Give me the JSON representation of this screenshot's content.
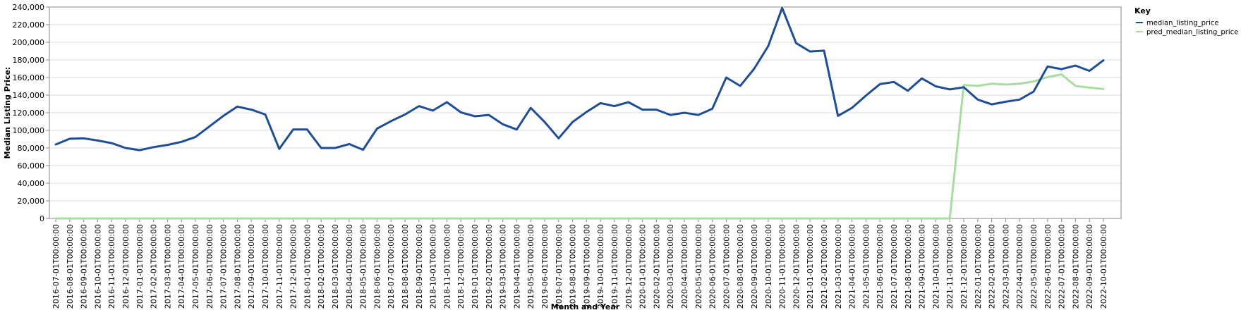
{
  "chart_data": {
    "type": "line",
    "xlabel": "Month and Year",
    "ylabel": "Median Listing Price:",
    "ylim": [
      0,
      240000
    ],
    "y_ticks": [
      "0",
      "20,000",
      "40,000",
      "60,000",
      "80,000",
      "100,000",
      "120,000",
      "140,000",
      "160,000",
      "180,000",
      "200,000",
      "220,000",
      "240,000"
    ],
    "grid": true,
    "legend": {
      "title": "Key",
      "position": "top-right"
    },
    "x": [
      "2016-07-01T00:00:00",
      "2016-08-01T00:00:00",
      "2016-09-01T00:00:00",
      "2016-10-01T00:00:00",
      "2016-11-01T00:00:00",
      "2016-12-01T00:00:00",
      "2017-01-01T00:00:00",
      "2017-02-01T00:00:00",
      "2017-03-01T00:00:00",
      "2017-04-01T00:00:00",
      "2017-05-01T00:00:00",
      "2017-06-01T00:00:00",
      "2017-07-01T00:00:00",
      "2017-08-01T00:00:00",
      "2017-09-01T00:00:00",
      "2017-10-01T00:00:00",
      "2017-11-01T00:00:00",
      "2017-12-01T00:00:00",
      "2018-01-01T00:00:00",
      "2018-02-01T00:00:00",
      "2018-03-01T00:00:00",
      "2018-04-01T00:00:00",
      "2018-05-01T00:00:00",
      "2018-06-01T00:00:00",
      "2018-07-01T00:00:00",
      "2018-08-01T00:00:00",
      "2018-09-01T00:00:00",
      "2018-10-01T00:00:00",
      "2018-11-01T00:00:00",
      "2018-12-01T00:00:00",
      "2019-01-01T00:00:00",
      "2019-02-01T00:00:00",
      "2019-03-01T00:00:00",
      "2019-04-01T00:00:00",
      "2019-05-01T00:00:00",
      "2019-06-01T00:00:00",
      "2019-07-01T00:00:00",
      "2019-08-01T00:00:00",
      "2019-09-01T00:00:00",
      "2019-10-01T00:00:00",
      "2019-11-01T00:00:00",
      "2019-12-01T00:00:00",
      "2020-01-01T00:00:00",
      "2020-02-01T00:00:00",
      "2020-03-01T00:00:00",
      "2020-04-01T00:00:00",
      "2020-05-01T00:00:00",
      "2020-06-01T00:00:00",
      "2020-07-01T00:00:00",
      "2020-08-01T00:00:00",
      "2020-09-01T00:00:00",
      "2020-10-01T00:00:00",
      "2020-11-01T00:00:00",
      "2020-12-01T00:00:00",
      "2021-01-01T00:00:00",
      "2021-02-01T00:00:00",
      "2021-03-01T00:00:00",
      "2021-04-01T00:00:00",
      "2021-05-01T00:00:00",
      "2021-06-01T00:00:00",
      "2021-07-01T00:00:00",
      "2021-08-01T00:00:00",
      "2021-09-01T00:00:00",
      "2021-10-01T00:00:00",
      "2021-11-01T00:00:00",
      "2021-12-01T00:00:00",
      "2022-01-01T00:00:00",
      "2022-02-01T00:00:00",
      "2022-03-01T00:00:00",
      "2022-04-01T00:00:00",
      "2022-05-01T00:00:00",
      "2022-06-01T00:00:00",
      "2022-07-01T00:00:00",
      "2022-08-01T00:00:00",
      "2022-09-01T00:00:00",
      "2022-10-01T00:00:00"
    ],
    "series": [
      {
        "name": "median_listing_price",
        "color": "#1f4e96",
        "values": [
          84000,
          90500,
          91000,
          88500,
          85500,
          80000,
          77500,
          81000,
          83500,
          87000,
          92500,
          104500,
          116500,
          127000,
          123500,
          118000,
          79000,
          101000,
          101000,
          80000,
          80000,
          84500,
          78000,
          102000,
          110500,
          118000,
          127500,
          122500,
          132000,
          120500,
          116000,
          117500,
          107000,
          101000,
          125500,
          109500,
          91000,
          109500,
          121000,
          131000,
          127500,
          132000,
          123500,
          123500,
          117500,
          120000,
          117500,
          124500,
          160000,
          150500,
          170000,
          195500,
          239000,
          199000,
          189500,
          190500,
          116500,
          125500,
          139500,
          152500,
          155000,
          145000,
          159000,
          150000,
          146500,
          149000,
          135000,
          129500,
          132500,
          135000,
          144000,
          172500,
          169500,
          173500,
          167500,
          179500
        ]
      },
      {
        "name": "pred_median_listing_price",
        "color": "#a8dca0",
        "values": [
          0,
          0,
          0,
          0,
          0,
          0,
          0,
          0,
          0,
          0,
          0,
          0,
          0,
          0,
          0,
          0,
          0,
          0,
          0,
          0,
          0,
          0,
          0,
          0,
          0,
          0,
          0,
          0,
          0,
          0,
          0,
          0,
          0,
          0,
          0,
          0,
          0,
          0,
          0,
          0,
          0,
          0,
          0,
          0,
          0,
          0,
          0,
          0,
          0,
          0,
          0,
          0,
          0,
          0,
          0,
          0,
          0,
          0,
          0,
          0,
          0,
          0,
          0,
          0,
          0,
          151500,
          150500,
          153000,
          152000,
          153000,
          155500,
          160500,
          163500,
          150500,
          148500,
          147000
        ]
      }
    ]
  }
}
